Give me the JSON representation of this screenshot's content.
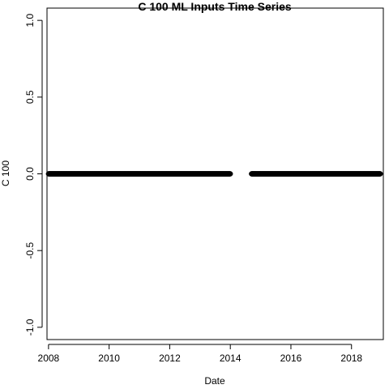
{
  "chart_data": {
    "type": "scatter",
    "title": "C 100 ML Inputs Time Series",
    "xlabel": "Date",
    "ylabel": "C 100",
    "xlim": [
      2007.95,
      2019.05
    ],
    "ylim": [
      -1.08,
      1.08
    ],
    "x_ticks": [
      2008,
      2010,
      2012,
      2014,
      2016,
      2018
    ],
    "x_tick_labels": [
      "2008",
      "2010",
      "2012",
      "2014",
      "2016",
      "2018"
    ],
    "y_ticks": [
      -1.0,
      -0.5,
      0.0,
      0.5,
      1.0
    ],
    "y_tick_labels": [
      "-1.0",
      "-0.5",
      "0.0",
      "0.5",
      "1.0"
    ],
    "grid": false,
    "legend": "none",
    "point_color": "#000000",
    "series": [
      {
        "segments": [
          {
            "x_start": 2008.0,
            "x_end": 2014.0,
            "y": 0
          },
          {
            "x_start": 2014.7,
            "x_end": 2018.95,
            "y": 0
          }
        ]
      }
    ]
  }
}
